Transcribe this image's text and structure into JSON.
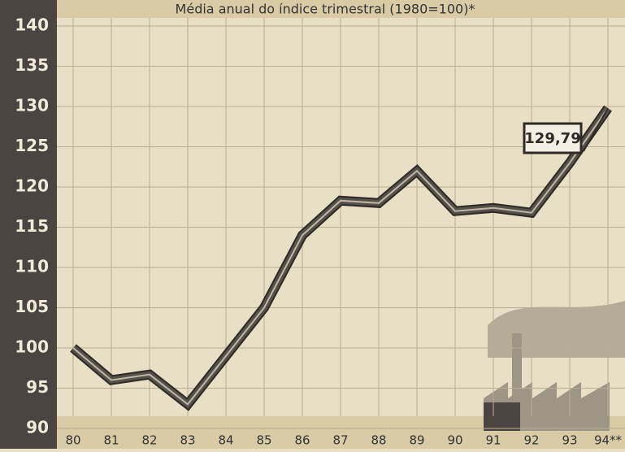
{
  "chart_data": {
    "type": "line",
    "title": "Média anual do índice trimestral (1980=100)*",
    "categories": [
      "80",
      "81",
      "82",
      "83",
      "84",
      "85",
      "86",
      "87",
      "88",
      "89",
      "90",
      "91",
      "92",
      "93",
      "94**"
    ],
    "values": [
      100,
      96,
      96.7,
      93,
      99,
      105,
      114,
      118.3,
      118,
      122,
      117,
      117.4,
      116.8,
      123,
      129.79
    ],
    "value_labels": [
      null,
      null,
      null,
      null,
      null,
      null,
      null,
      null,
      null,
      null,
      null,
      null,
      null,
      null,
      "129,79"
    ],
    "color": "#555048",
    "ylim": [
      90,
      140
    ],
    "yticks": [
      90,
      95,
      100,
      105,
      110,
      115,
      120,
      125,
      130,
      135,
      140
    ],
    "grid": true
  }
}
